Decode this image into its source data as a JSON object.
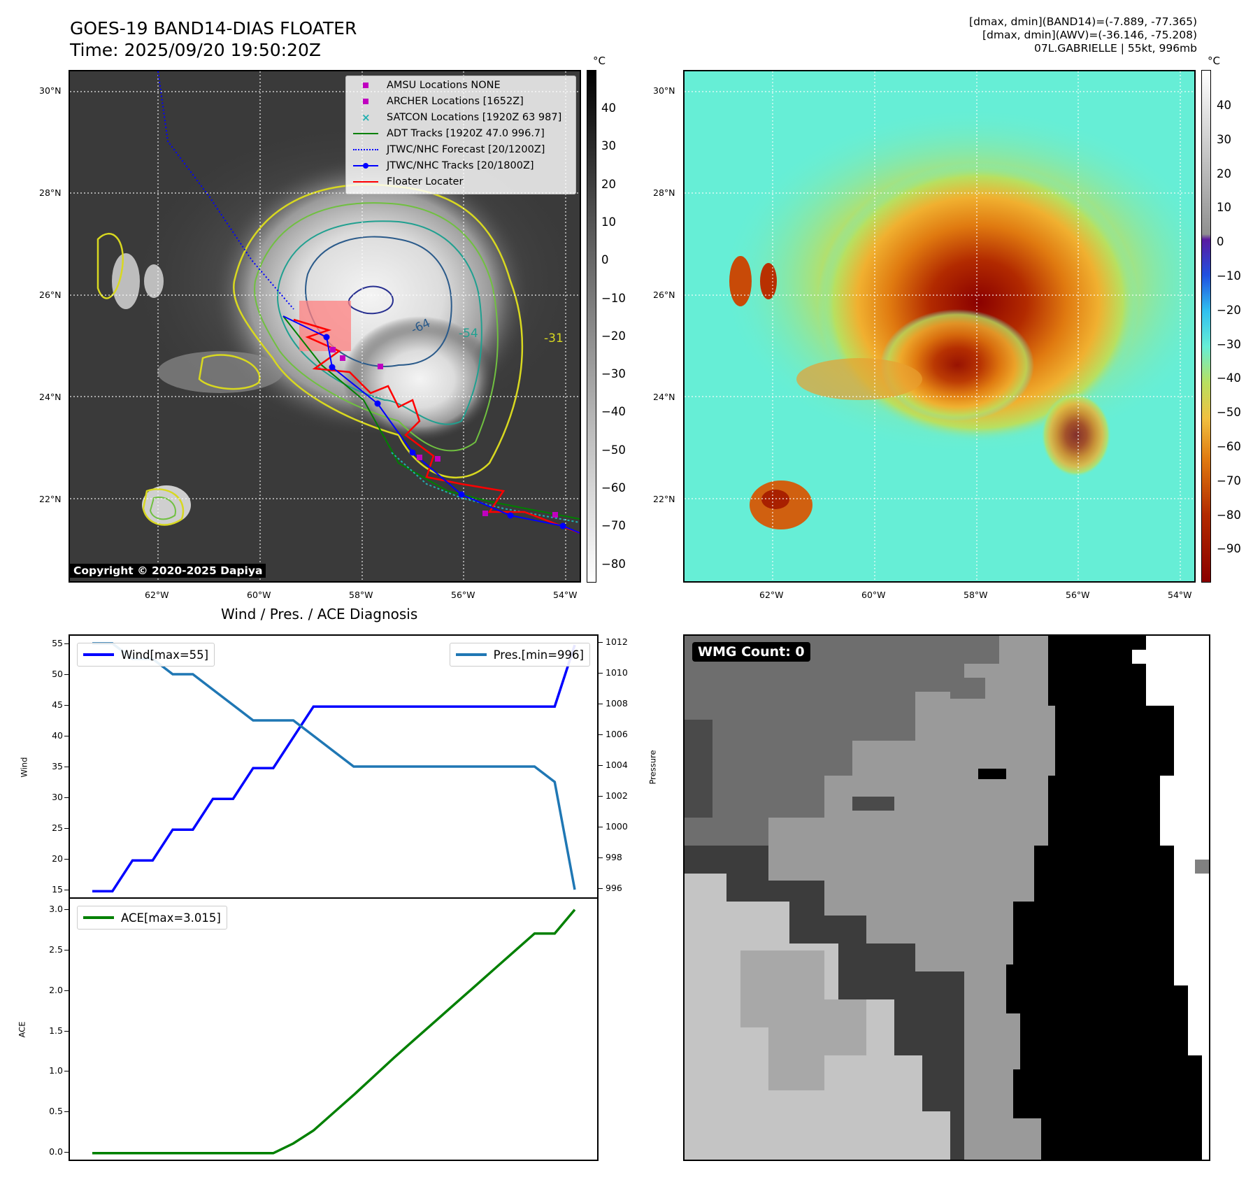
{
  "header": {
    "title": "GOES-19 BAND14-DIAS FLOATER",
    "time": "Time: 2025/09/20 19:50:20Z",
    "stats_line1": "[dmax, dmin](BAND14)=(-7.889, -77.365)",
    "stats_line2": "[dmax, dmin](AWV)=(-36.146, -75.208)",
    "stats_line3": "07L.GABRIELLE | 55kt, 996mb"
  },
  "map_axes": {
    "lat_labels": [
      "30°N",
      "28°N",
      "26°N",
      "24°N",
      "22°N"
    ],
    "lon_labels": [
      "62°W",
      "60°W",
      "58°W",
      "56°W",
      "54°W"
    ]
  },
  "ir_colorbar": {
    "unit": "°C",
    "ticks": [
      "40",
      "30",
      "20",
      "10",
      "0",
      "−10",
      "−20",
      "−30",
      "−40",
      "−50",
      "−60",
      "−70",
      "−80"
    ]
  },
  "enh_colorbar": {
    "unit": "°C",
    "ticks": [
      "40",
      "30",
      "20",
      "10",
      "0",
      "−10",
      "−20",
      "−30",
      "−40",
      "−50",
      "−60",
      "−70",
      "−80",
      "−90"
    ]
  },
  "legend": {
    "items": [
      {
        "label": "AMSU Locations NONE",
        "color": "#c000c0"
      },
      {
        "label": "ARCHER Locations [1652Z]",
        "color": "#c000c0"
      },
      {
        "label": "SATCON Locations [1920Z 63 987]",
        "color": "#20b0b0"
      },
      {
        "label": "ADT Tracks [1920Z 47.0 996.7]",
        "color": "#008000"
      },
      {
        "label": "JTWC/NHC Forecast [20/1200Z]",
        "color": "#0000ff"
      },
      {
        "label": "JTWC/NHC Tracks [20/1800Z]",
        "color": "#0000ff"
      },
      {
        "label": "Floater Locater",
        "color": "#ff0000"
      }
    ]
  },
  "contour_labels": [
    "-64",
    "-54",
    "-31"
  ],
  "copyright": "Copyright © 2020-2025 Dapiya",
  "wmg_label": "WMG Count: 0",
  "chart_data": [
    {
      "type": "line",
      "title": "Wind / Pres. / ACE Diagnosis",
      "ylabel": "Wind",
      "ylabel_right": "Pressure",
      "ylim": [
        14,
        56.5
      ],
      "ylim_right": [
        995.5,
        1012.5
      ],
      "yticks": [
        15,
        20,
        25,
        30,
        35,
        40,
        45,
        50,
        55
      ],
      "yticks_right": [
        996,
        998,
        1000,
        1002,
        1004,
        1006,
        1008,
        1010,
        1012
      ],
      "series": [
        {
          "name": "Wind[max=55]",
          "color": "#0000ff",
          "axis": "left",
          "values": [
            15,
            15,
            20,
            20,
            25,
            25,
            30,
            30,
            35,
            35,
            40,
            45,
            45,
            45,
            45,
            45,
            45,
            45,
            45,
            45,
            45,
            45,
            45,
            45,
            55
          ]
        },
        {
          "name": "Pres.[min=996]",
          "color": "#1f77b4",
          "axis": "right",
          "values": [
            1012,
            1012,
            1011,
            1011,
            1010,
            1010,
            1009,
            1008,
            1007,
            1007,
            1007,
            1006,
            1005,
            1004,
            1004,
            1004,
            1004,
            1004,
            1004,
            1004,
            1004,
            1004,
            1004,
            1003,
            996
          ]
        }
      ]
    },
    {
      "type": "line",
      "ylabel": "ACE",
      "ylim": [
        -0.08,
        3.15
      ],
      "yticks": [
        0.0,
        0.5,
        1.0,
        1.5,
        2.0,
        2.5,
        3.0
      ],
      "series": [
        {
          "name": "ACE[max=3.015]",
          "color": "#008000",
          "values": [
            0,
            0,
            0,
            0,
            0,
            0,
            0,
            0,
            0,
            0,
            0.12,
            0.28,
            0.5,
            0.72,
            0.95,
            1.18,
            1.4,
            1.62,
            1.84,
            2.06,
            2.28,
            2.5,
            2.72,
            2.72,
            3.015
          ]
        }
      ]
    }
  ]
}
